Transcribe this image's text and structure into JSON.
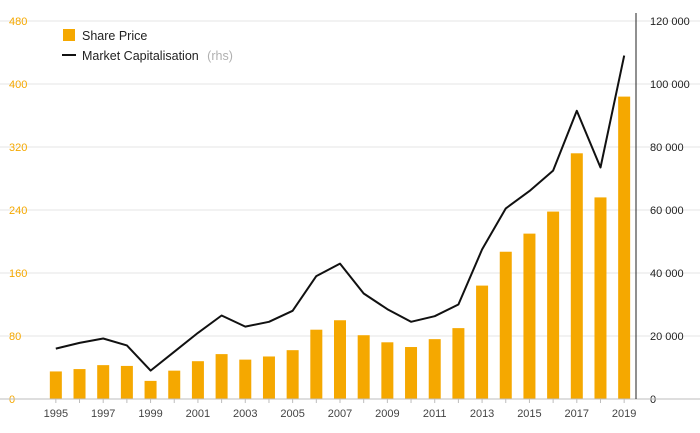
{
  "chart_data": {
    "type": "bar+line",
    "x": [
      1995,
      1996,
      1997,
      1998,
      1999,
      2000,
      2001,
      2002,
      2003,
      2004,
      2005,
      2006,
      2007,
      2008,
      2009,
      2010,
      2011,
      2012,
      2013,
      2014,
      2015,
      2016,
      2017,
      2018,
      2019
    ],
    "x_tick_labels": [
      "1995",
      "1997",
      "1999",
      "2001",
      "2003",
      "2005",
      "2007",
      "2009",
      "2011",
      "2013",
      "2015",
      "2017",
      "2019"
    ],
    "series": [
      {
        "name": "Share Price",
        "type": "bar",
        "axis": "left",
        "color": "#f5a800",
        "values": [
          35,
          38,
          43,
          42,
          23,
          36,
          48,
          57,
          50,
          54,
          62,
          88,
          100,
          81,
          72,
          66,
          76,
          90,
          144,
          187,
          210,
          238,
          312,
          256,
          384
        ]
      },
      {
        "name": "Market Capitalisation",
        "name_suffix": "(rhs)",
        "type": "line",
        "axis": "right",
        "color": "#111111",
        "values": [
          16000,
          17800,
          19200,
          17000,
          9000,
          15000,
          21000,
          26500,
          23000,
          24500,
          28000,
          39000,
          43000,
          33500,
          28500,
          24500,
          26300,
          30000,
          47500,
          60500,
          66000,
          72500,
          91500,
          73500,
          109000
        ]
      }
    ],
    "y_left": {
      "min": 0,
      "max": 480,
      "ticks": [
        "0",
        "80",
        "160",
        "240",
        "320",
        "400",
        "480"
      ],
      "color": "#f5a800"
    },
    "y_right": {
      "min": 0,
      "max": 120000,
      "ticks": [
        "0",
        "20 000",
        "40 000",
        "60 000",
        "80 000",
        "100 000",
        "120 000"
      ]
    },
    "grid": true,
    "legend_position": "top-left"
  }
}
